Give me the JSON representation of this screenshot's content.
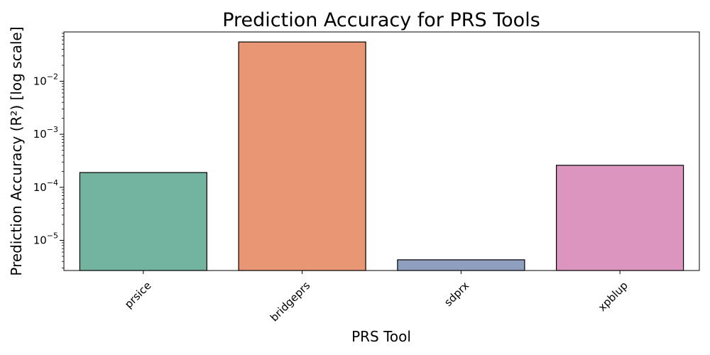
{
  "chart_data": {
    "type": "bar",
    "title": "Prediction Accuracy for PRS Tools",
    "xlabel": "PRS Tool",
    "ylabel": "Prediction Accuracy (R²) [log scale]",
    "yscale": "log",
    "ylim": [
      2.7e-06,
      0.085
    ],
    "categories": [
      "prsice",
      "bridgeprs",
      "sdprx",
      "xpblup"
    ],
    "values": [
      0.00019,
      0.055,
      4.3e-06,
      0.00026
    ],
    "colors": [
      "#73b4a0",
      "#e89674",
      "#8f9fc0",
      "#db95bf"
    ],
    "ytick_base": "10",
    "yticks": [
      {
        "exp": -5,
        "label": "−5"
      },
      {
        "exp": -4,
        "label": "−4"
      },
      {
        "exp": -3,
        "label": "−3"
      },
      {
        "exp": -2,
        "label": "−2"
      }
    ],
    "grid": false,
    "legend": "none"
  }
}
